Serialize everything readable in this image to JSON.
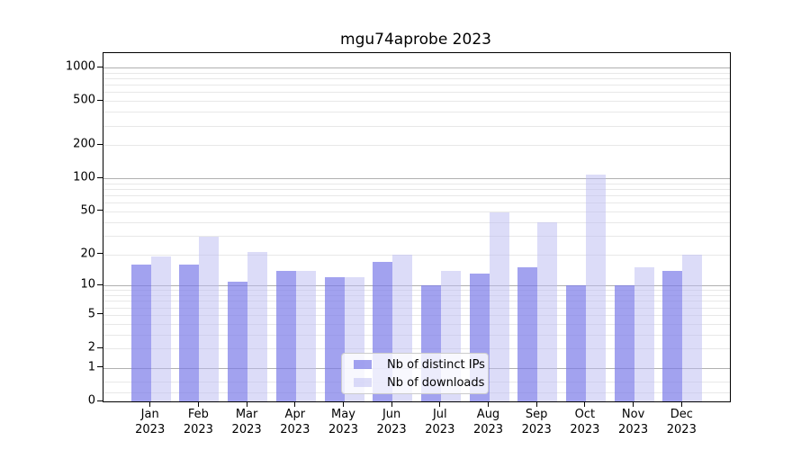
{
  "title": "mgu74aprobe 2023",
  "colors": {
    "ips": "rgba(122,122,232,0.7)",
    "downloads": "rgba(185,185,241,0.5)",
    "ips_flat": "#a2a2ef",
    "downloads_flat": "#dcdcf8",
    "major_grid": "#b0b0b0",
    "minor_grid": "#e8e8e8",
    "axis": "#000000",
    "legend_border": "#cccccc"
  },
  "chart_data": {
    "type": "bar",
    "title": "mgu74aprobe 2023",
    "categories": [
      "Jan 2023",
      "Feb 2023",
      "Mar 2023",
      "Apr 2023",
      "May 2023",
      "Jun 2023",
      "Jul 2023",
      "Aug 2023",
      "Sep 2023",
      "Oct 2023",
      "Nov 2023",
      "Dec 2023"
    ],
    "series": [
      {
        "name": "Nb of distinct IPs",
        "values": [
          16,
          16,
          11,
          14,
          12,
          17,
          10,
          13,
          15,
          10,
          10,
          14
        ]
      },
      {
        "name": "Nb of downloads",
        "values": [
          19,
          29,
          21,
          14,
          12,
          20,
          14,
          49,
          40,
          108,
          15,
          20
        ]
      }
    ],
    "xlabel": "",
    "ylabel": "",
    "yscale": "log1p",
    "y_axis_top_value": 1347,
    "y_tick_values": [
      0,
      1,
      2,
      5,
      10,
      20,
      50,
      100,
      200,
      500,
      1000
    ],
    "y_tick_labels": [
      "0",
      "1",
      "2",
      "5",
      "10",
      "20",
      "50",
      "100",
      "200",
      "500",
      "1000"
    ],
    "y_major_gridlines": [
      1,
      10,
      100,
      1000
    ],
    "y_minor_gridlines": [
      0.2,
      0.5,
      2,
      3,
      4,
      5,
      6,
      7,
      8,
      9,
      20,
      30,
      40,
      50,
      60,
      70,
      80,
      90,
      200,
      300,
      400,
      500,
      600,
      700,
      800,
      900
    ],
    "grid": "on",
    "legend_position": "lower center"
  }
}
